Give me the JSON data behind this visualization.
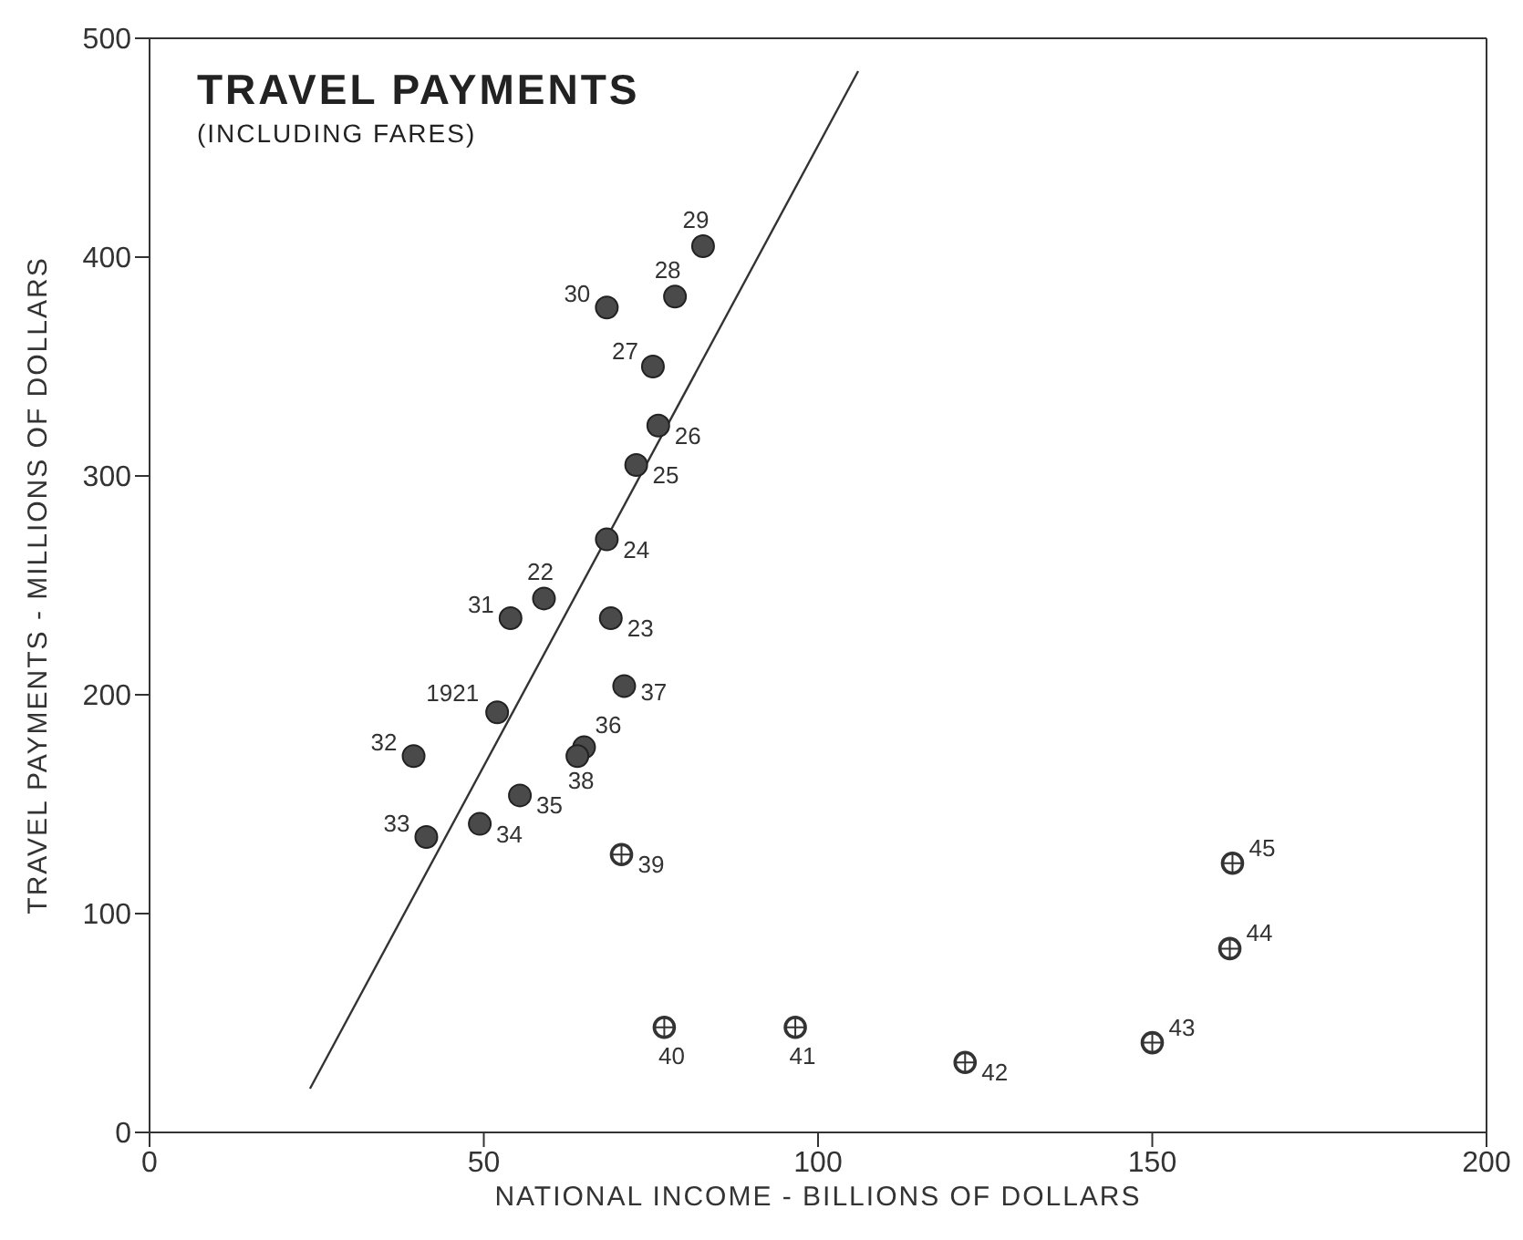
{
  "chart_data": {
    "type": "scatter",
    "title": "TRAVEL PAYMENTS",
    "subtitle": "(INCLUDING FARES)",
    "xlabel": "NATIONAL INCOME - BILLIONS OF DOLLARS",
    "ylabel": "TRAVEL PAYMENTS - MILLIONS OF DOLLARS",
    "xlim": [
      0,
      200
    ],
    "xticks": [
      0,
      50,
      100,
      150,
      200
    ],
    "ylim": [
      0,
      500
    ],
    "yticks": [
      0,
      100,
      200,
      300,
      400,
      500
    ],
    "grid": false,
    "legend": false,
    "series": [
      {
        "marker": "circle",
        "color": "#4a4a4a",
        "x": [
          52,
          59,
          69,
          68.4,
          72.8,
          76.1,
          75.3,
          78.6,
          82.8,
          68.4,
          54,
          39.5,
          41.4,
          49.4,
          55.4,
          65,
          71,
          64
        ],
        "values": [
          192,
          244,
          235,
          271,
          305,
          323,
          350,
          382,
          405,
          377,
          235,
          172,
          135,
          141,
          154,
          176,
          204,
          172
        ]
      },
      {
        "marker": "circle",
        "color": "#333333",
        "x": [
          70.6,
          77,
          96.6,
          122,
          150,
          161.6,
          162
        ],
        "values": [
          127,
          48,
          48,
          32,
          41,
          84,
          123
        ]
      },
      {
        "type": "line",
        "marker": "none",
        "color": "#333333",
        "x": [
          24,
          106
        ],
        "values": [
          20,
          485
        ]
      }
    ],
    "annotations": [
      {
        "text": "1921",
        "x": 52,
        "y": 192
      },
      {
        "text": "22",
        "x": 59,
        "y": 244
      },
      {
        "text": "23",
        "x": 69,
        "y": 235
      },
      {
        "text": "24",
        "x": 68.4,
        "y": 271
      },
      {
        "text": "25",
        "x": 72.8,
        "y": 305
      },
      {
        "text": "26",
        "x": 76.1,
        "y": 323
      },
      {
        "text": "27",
        "x": 75.3,
        "y": 350
      },
      {
        "text": "28",
        "x": 78.6,
        "y": 382
      },
      {
        "text": "29",
        "x": 82.8,
        "y": 405
      },
      {
        "text": "30",
        "x": 68.4,
        "y": 377
      },
      {
        "text": "31",
        "x": 54,
        "y": 235
      },
      {
        "text": "32",
        "x": 39.5,
        "y": 172
      },
      {
        "text": "33",
        "x": 41.4,
        "y": 135
      },
      {
        "text": "34",
        "x": 49.4,
        "y": 141
      },
      {
        "text": "35",
        "x": 55.4,
        "y": 154
      },
      {
        "text": "36",
        "x": 65,
        "y": 176
      },
      {
        "text": "37",
        "x": 71,
        "y": 204
      },
      {
        "text": "38",
        "x": 64,
        "y": 172
      },
      {
        "text": "39",
        "x": 70.6,
        "y": 127
      },
      {
        "text": "40",
        "x": 77,
        "y": 48
      },
      {
        "text": "41",
        "x": 96.6,
        "y": 48
      },
      {
        "text": "42",
        "x": 122,
        "y": 32
      },
      {
        "text": "43",
        "x": 150,
        "y": 41
      },
      {
        "text": "44",
        "x": 161.6,
        "y": 84
      },
      {
        "text": "45",
        "x": 162,
        "y": 123
      }
    ]
  }
}
